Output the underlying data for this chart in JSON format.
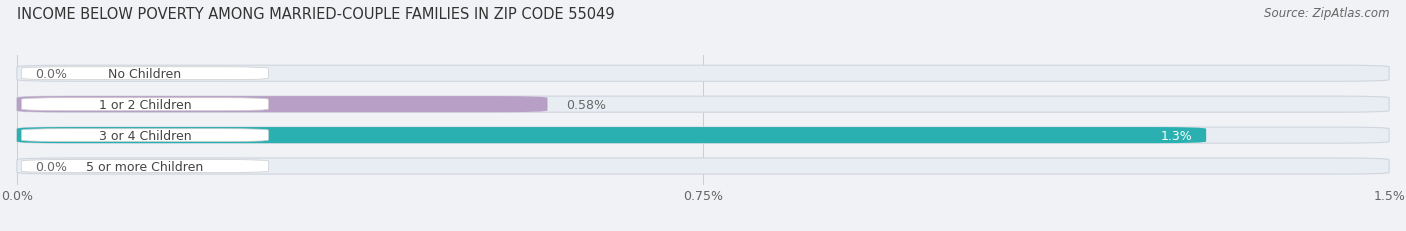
{
  "title": "INCOME BELOW POVERTY AMONG MARRIED-COUPLE FAMILIES IN ZIP CODE 55049",
  "source": "Source: ZipAtlas.com",
  "categories": [
    "No Children",
    "1 or 2 Children",
    "3 or 4 Children",
    "5 or more Children"
  ],
  "values": [
    0.0,
    0.58,
    1.3,
    0.0
  ],
  "bar_colors": [
    "#aab8d8",
    "#b89fc5",
    "#2ab0b0",
    "#aab8d8"
  ],
  "bar_bg_color": "#e8edf4",
  "label_bg_color": "#ffffff",
  "label_text_color": "#444444",
  "xlim": [
    0,
    1.5
  ],
  "xticks": [
    0.0,
    0.75,
    1.5
  ],
  "xtick_labels": [
    "0.0%",
    "0.75%",
    "1.5%"
  ],
  "value_label_color_inside": "#ffffff",
  "value_label_color_outside": "#666666",
  "title_fontsize": 10.5,
  "source_fontsize": 8.5,
  "bar_label_fontsize": 9,
  "tick_fontsize": 9,
  "bar_height": 0.52,
  "background_color": "#f0f2f5"
}
